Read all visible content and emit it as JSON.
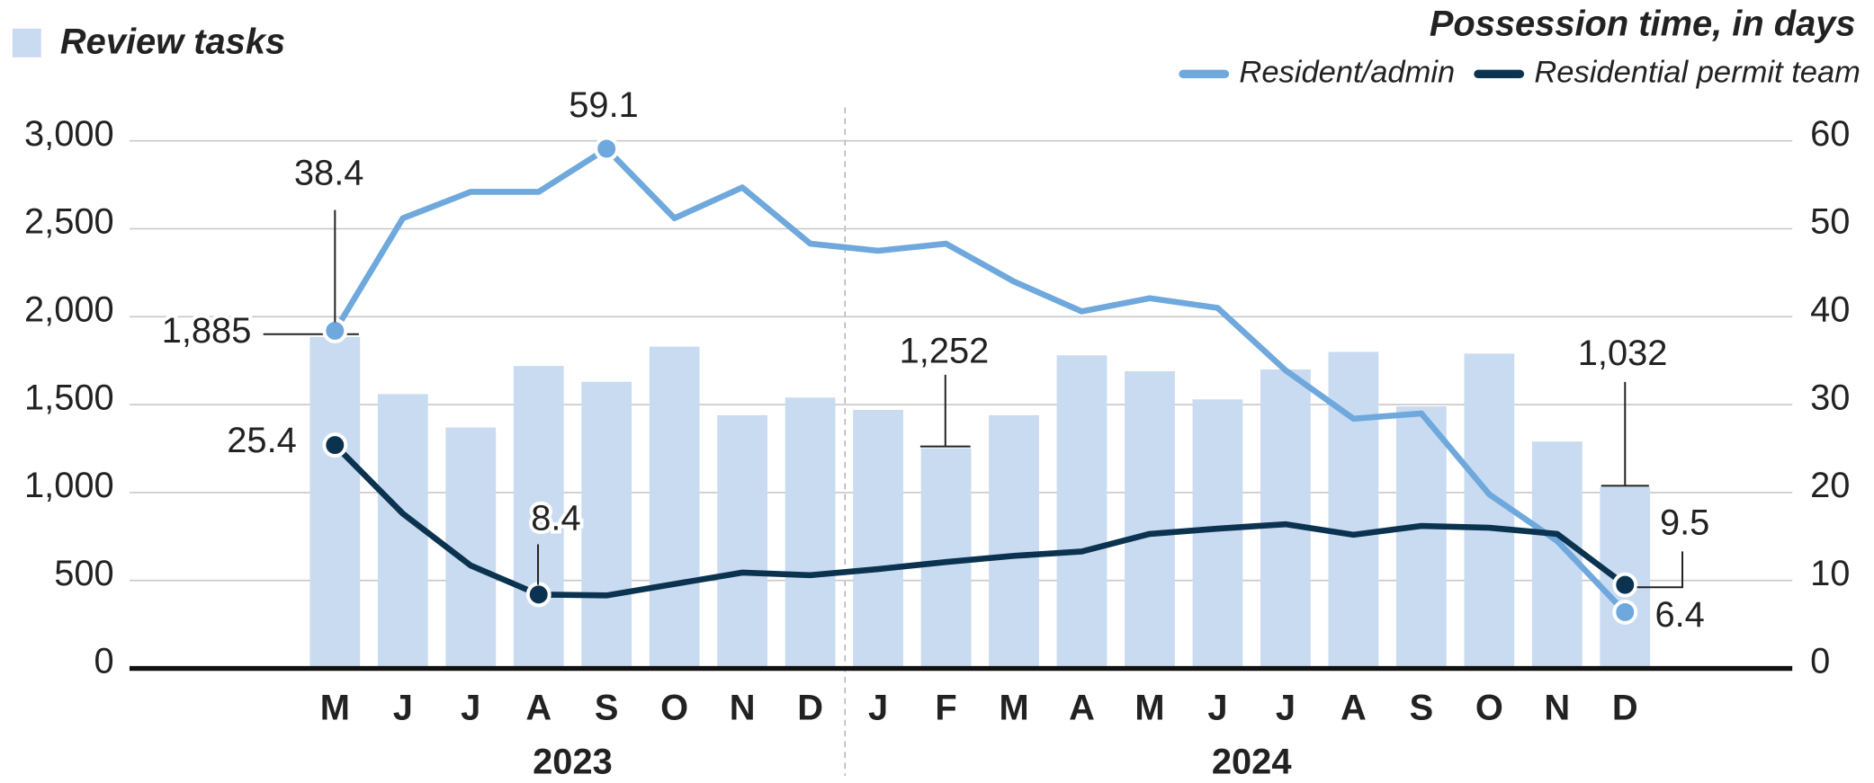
{
  "chart_data": {
    "type": "bar-line",
    "title": "Review tasks",
    "y2_title": "Possession time, in days",
    "categories": [
      "M",
      "J",
      "J",
      "A",
      "S",
      "O",
      "N",
      "D",
      "J",
      "F",
      "M",
      "A",
      "M",
      "J",
      "J",
      "A",
      "S",
      "O",
      "N",
      "D"
    ],
    "year_groups": [
      {
        "label": "2023",
        "start": 0,
        "end": 7
      },
      {
        "label": "2024",
        "start": 8,
        "end": 19
      }
    ],
    "bar_color": "#c9dbf0",
    "values": [
      1885,
      1560,
      1370,
      1720,
      1630,
      1830,
      1440,
      1540,
      1470,
      1252,
      1440,
      1780,
      1690,
      1530,
      1700,
      1800,
      1490,
      1790,
      1290,
      1032
    ],
    "value_labels": [
      "1,885",
      null,
      null,
      null,
      null,
      null,
      null,
      null,
      null,
      "1,252",
      null,
      null,
      null,
      null,
      null,
      null,
      null,
      null,
      null,
      "1,032"
    ],
    "series": [
      {
        "name": "Resident/admin",
        "color": "#6fa8dc",
        "axis": "y2",
        "values": [
          38.4,
          51.2,
          54.2,
          54.2,
          59.1,
          51.2,
          54.7,
          48.3,
          47.5,
          48.3,
          44,
          40.6,
          42.1,
          41,
          33.9,
          28.4,
          29,
          19.8,
          14.5,
          6.4
        ],
        "value_labels": [
          "38.4",
          null,
          null,
          null,
          "59.1",
          null,
          null,
          null,
          null,
          null,
          null,
          null,
          null,
          null,
          null,
          null,
          null,
          null,
          null,
          "6.4"
        ]
      },
      {
        "name": "Residential permit team",
        "color": "#0b3350",
        "axis": "y2",
        "values": [
          25.4,
          17.6,
          11.7,
          8.4,
          8.3,
          9.6,
          10.9,
          10.6,
          11.3,
          12.1,
          12.8,
          13.3,
          15.3,
          15.9,
          16.4,
          15.2,
          16.2,
          16,
          15.3,
          9.5
        ],
        "value_labels": [
          "25.4",
          null,
          null,
          "8.4",
          null,
          null,
          null,
          null,
          null,
          null,
          null,
          null,
          null,
          null,
          null,
          null,
          null,
          null,
          null,
          "9.5"
        ]
      }
    ],
    "ylim": [
      0,
      3000
    ],
    "yticks": [
      0,
      500,
      {
        "value": 1000,
        "label": "1,000"
      },
      {
        "value": 1500,
        "label": "1,500"
      },
      {
        "value": 2000,
        "label": "2,000"
      },
      {
        "value": 2500,
        "label": "2,500"
      },
      {
        "value": 3000,
        "label": "3,000"
      }
    ],
    "y2lim": [
      0,
      60
    ],
    "y2ticks": [
      0,
      10,
      20,
      30,
      40,
      50,
      60
    ],
    "grid": true
  }
}
